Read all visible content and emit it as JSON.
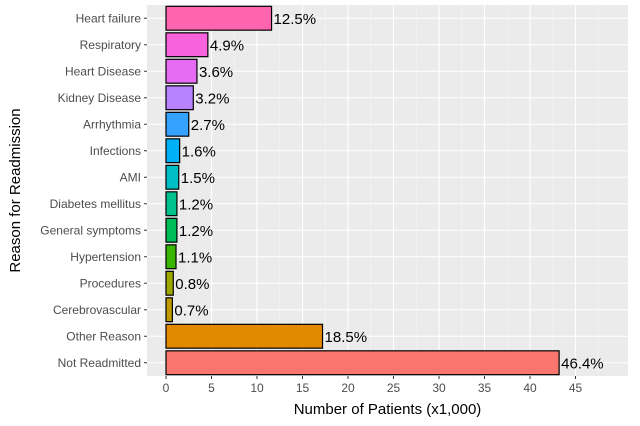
{
  "chart_data": {
    "type": "bar",
    "orientation": "horizontal",
    "xlabel": "Number of Patients (x1,000)",
    "ylabel": "Reason for Readmission",
    "xlim": [
      0,
      49.5
    ],
    "xticks": [
      0,
      5,
      10,
      15,
      20,
      25,
      30,
      35,
      40,
      45
    ],
    "grid": true,
    "legend": "none",
    "background": "#ebebeb",
    "bars": [
      {
        "category": "Heart failure",
        "value": 11.6,
        "label": "12.5%",
        "color": "#ff64b0"
      },
      {
        "category": "Respiratory",
        "value": 4.6,
        "label": "4.9%",
        "color": "#f962dd"
      },
      {
        "category": "Heart Disease",
        "value": 3.4,
        "label": "3.6%",
        "color": "#e76bf3"
      },
      {
        "category": "Kidney Disease",
        "value": 3.0,
        "label": "3.2%",
        "color": "#b983ff"
      },
      {
        "category": "Arrhythmia",
        "value": 2.5,
        "label": "2.7%",
        "color": "#35a2ff"
      },
      {
        "category": "Infections",
        "value": 1.5,
        "label": "1.6%",
        "color": "#00b0f6"
      },
      {
        "category": "AMI",
        "value": 1.4,
        "label": "1.5%",
        "color": "#00bfc4"
      },
      {
        "category": "Diabetes mellitus",
        "value": 1.2,
        "label": "1.2%",
        "color": "#00c08b"
      },
      {
        "category": "General symptoms",
        "value": 1.2,
        "label": "1.2%",
        "color": "#00bc59"
      },
      {
        "category": "Hypertension",
        "value": 1.1,
        "label": "1.1%",
        "color": "#39b600"
      },
      {
        "category": "Procedures",
        "value": 0.8,
        "label": "0.8%",
        "color": "#9da700"
      },
      {
        "category": "Cerebrovascular",
        "value": 0.7,
        "label": "0.7%",
        "color": "#c09b00"
      },
      {
        "category": "Other Reason",
        "value": 17.2,
        "label": "18.5%",
        "color": "#e38900"
      },
      {
        "category": "Not Readmitted",
        "value": 43.2,
        "label": "46.4%",
        "color": "#f8766d"
      }
    ]
  }
}
